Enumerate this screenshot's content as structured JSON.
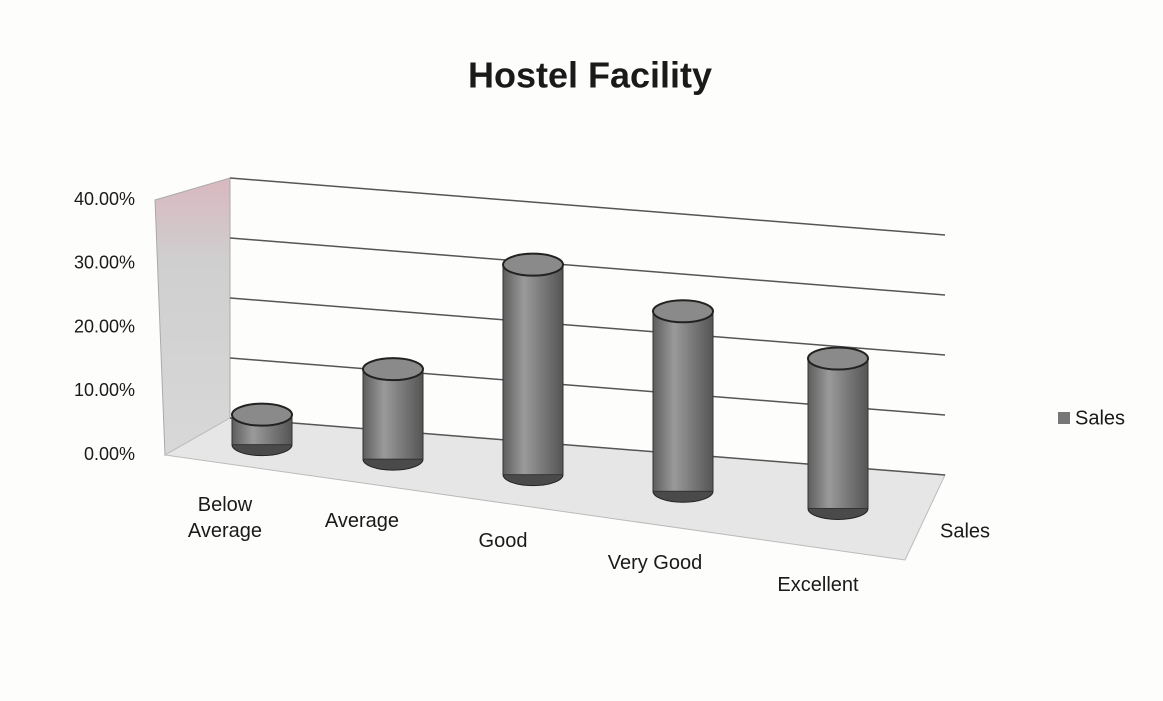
{
  "chart_data": {
    "type": "bar3d",
    "title": "Hostel Facility",
    "categories": [
      "Below Average",
      "Average",
      "Good",
      "Very Good",
      "Excellent"
    ],
    "series": [
      {
        "name": "Sales",
        "color": "#8a8a8a",
        "values": [
          5,
          15,
          35,
          30,
          25
        ]
      }
    ],
    "ylim": [
      0,
      40
    ],
    "yticks": [
      {
        "value": 0,
        "label": "0.00%"
      },
      {
        "value": 10,
        "label": "10.00%"
      },
      {
        "value": 20,
        "label": "20.00%"
      },
      {
        "value": 30,
        "label": "30.00%"
      },
      {
        "value": 40,
        "label": "40.00%"
      }
    ],
    "grid": true,
    "legend": "right"
  }
}
